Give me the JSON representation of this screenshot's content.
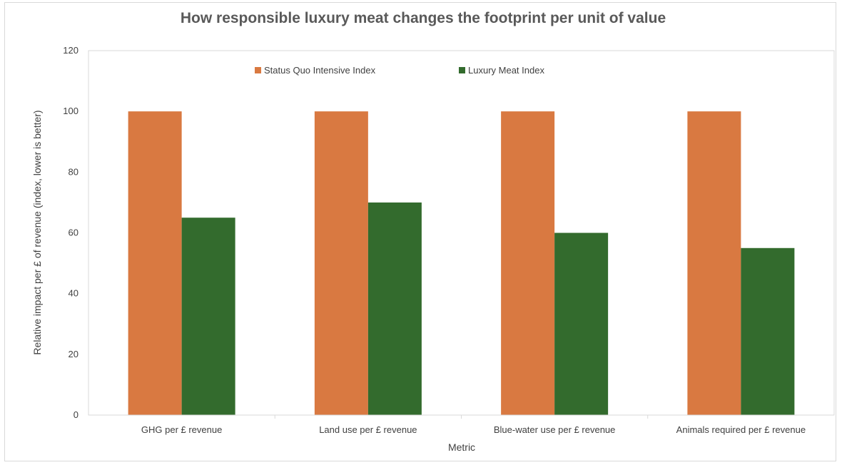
{
  "chart_data": {
    "type": "bar",
    "title": "How responsible luxury meat changes the footprint per unit of value",
    "xlabel": "Metric",
    "ylabel": "Relative impact per £ of revenue (index, lower is better)",
    "ylim": [
      0,
      120
    ],
    "yticks": [
      0,
      20,
      40,
      60,
      80,
      100,
      120
    ],
    "grid": false,
    "legend_position": "top",
    "categories": [
      "GHG per £ revenue",
      "Land use per £ revenue",
      "Blue-water use per £ revenue",
      "Animals required per £ revenue"
    ],
    "series": [
      {
        "name": "Status Quo Intensive Index",
        "color": "#d97941",
        "values": [
          100,
          100,
          100,
          100
        ]
      },
      {
        "name": "Luxury Meat Index",
        "color": "#336b2d",
        "values": [
          65,
          70,
          60,
          55
        ]
      }
    ]
  }
}
